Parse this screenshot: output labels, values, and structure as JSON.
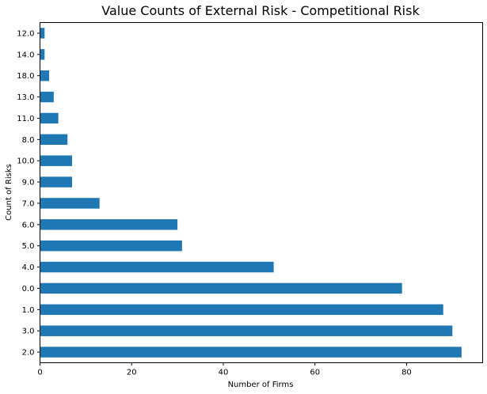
{
  "chart_data": {
    "type": "bar",
    "orientation": "horizontal",
    "title": "Value Counts of External Risk - Competitional Risk",
    "xlabel": "Number of Firms",
    "ylabel": "Count of Risks",
    "categories": [
      "12.0",
      "14.0",
      "18.0",
      "13.0",
      "11.0",
      "8.0",
      "10.0",
      "9.0",
      "7.0",
      "6.0",
      "5.0",
      "4.0",
      "0.0",
      "1.0",
      "3.0",
      "2.0"
    ],
    "values": [
      1,
      1,
      2,
      3,
      4,
      6,
      7,
      7,
      13,
      30,
      31,
      51,
      79,
      88,
      90,
      92
    ],
    "xlim": [
      0,
      96.6
    ],
    "xticks": [
      0,
      20,
      40,
      60,
      80
    ],
    "grid": false,
    "legend": "none",
    "bar_color": "#1f77b4"
  }
}
